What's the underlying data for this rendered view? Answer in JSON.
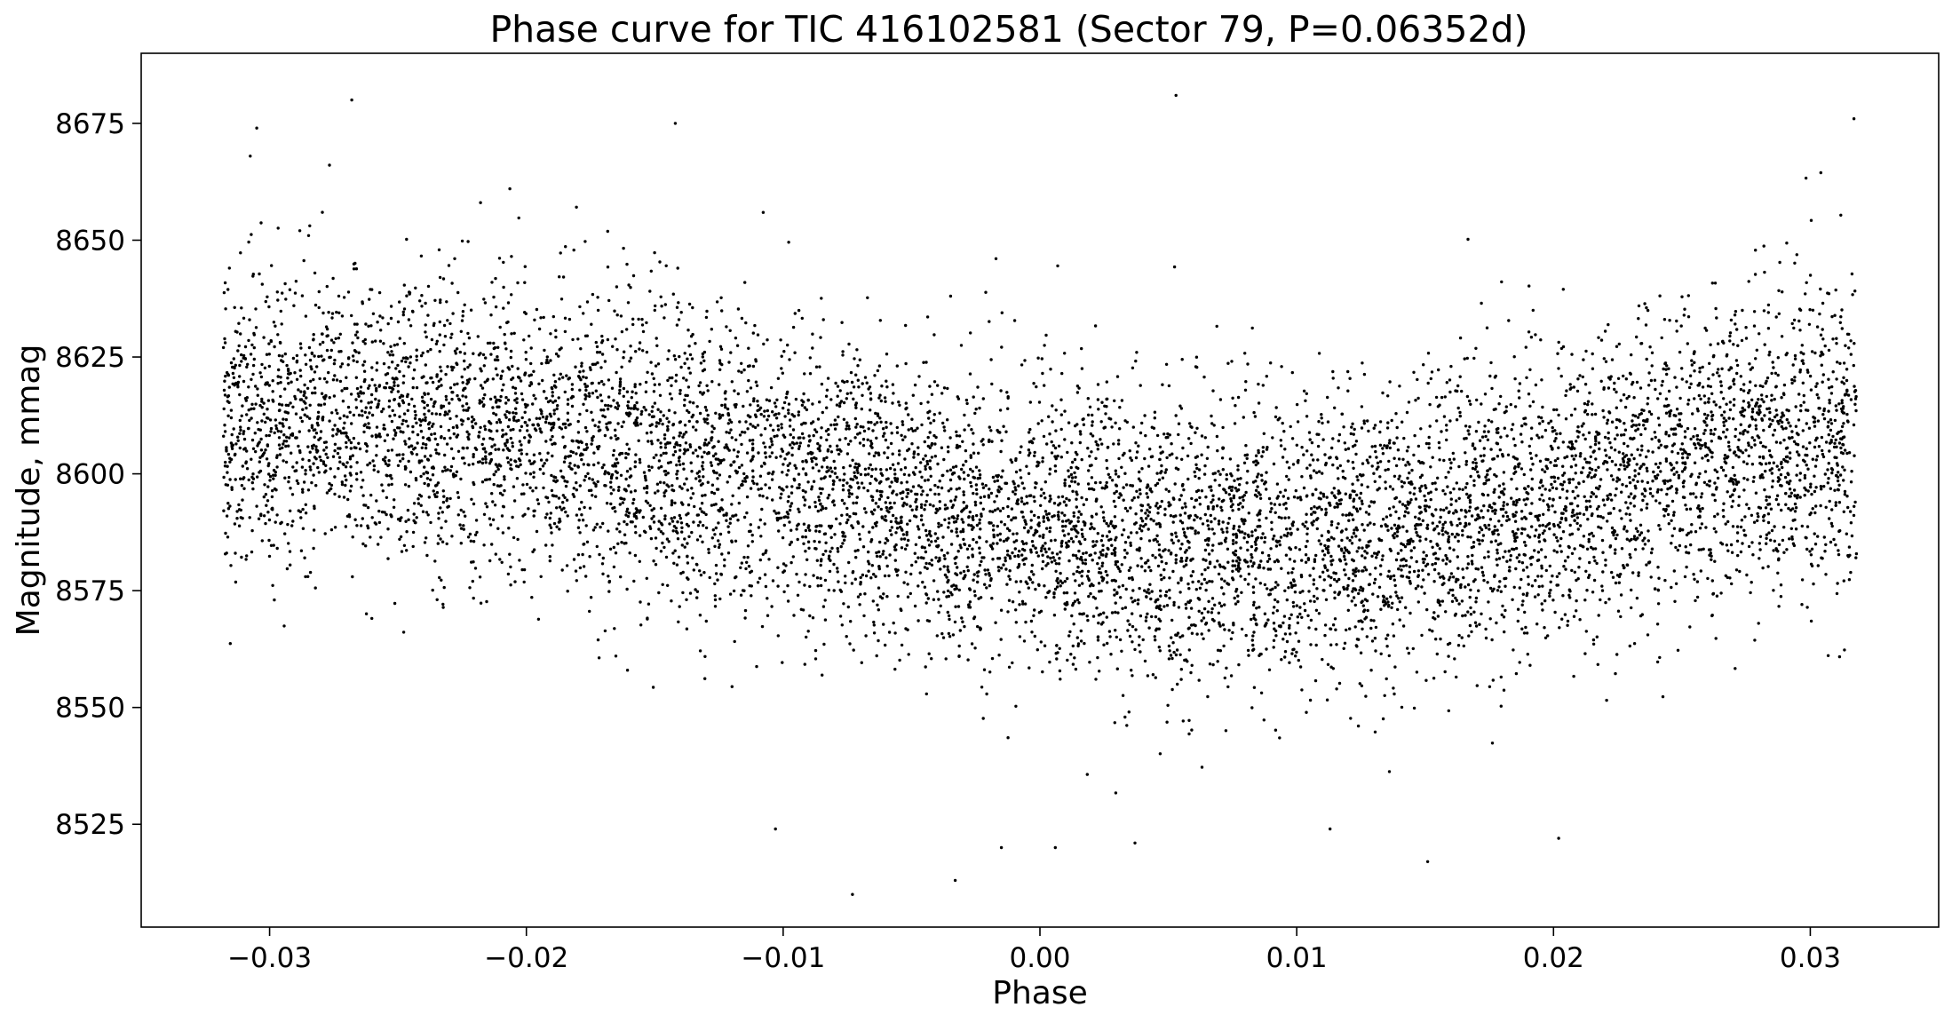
{
  "chart_data": {
    "type": "scatter",
    "title": "Phase curve for TIC 416102581 (Sector 79, P=0.06352d)",
    "xlabel": "Phase",
    "ylabel": "Magnitude, mmag",
    "xlim": [
      -0.035,
      0.035
    ],
    "ylim": [
      8503,
      8690
    ],
    "x_ticks": [
      -0.03,
      -0.02,
      -0.01,
      0.0,
      0.01,
      0.02,
      0.03
    ],
    "x_tick_labels": [
      "−0.03",
      "−0.02",
      "−0.01",
      "0.00",
      "0.01",
      "0.02",
      "0.03"
    ],
    "y_ticks": [
      8525,
      8550,
      8575,
      8600,
      8625,
      8650,
      8675
    ],
    "y_tick_labels": [
      "8525",
      "8550",
      "8575",
      "8600",
      "8625",
      "8650",
      "8675"
    ],
    "grid": false,
    "legend": "none",
    "marker_color": "#000000",
    "series": [
      {
        "phase_range": [
          -0.0318,
          0.0318
        ],
        "mean_curve": {
          "x": [
            -0.0318,
            -0.03,
            -0.025,
            -0.02,
            -0.015,
            -0.01,
            -0.005,
            0.0,
            0.005,
            0.01,
            0.015,
            0.02,
            0.025,
            0.03,
            0.0318
          ],
          "y": [
            8609,
            8610,
            8611,
            8609,
            8605,
            8600,
            8594,
            8589,
            8586,
            8586,
            8590,
            8596,
            8603,
            8608,
            8609
          ]
        },
        "scatter_sigma_mmag": 16,
        "outliers": [
          {
            "x": -0.0268,
            "y": 8680
          },
          {
            "x": 0.0053,
            "y": 8681
          },
          {
            "x": -0.0073,
            "y": 8510
          },
          {
            "x": -0.0033,
            "y": 8513
          },
          {
            "x": 0.0317,
            "y": 8676
          },
          {
            "x": -0.0305,
            "y": 8674
          },
          {
            "x": -0.0142,
            "y": 8675
          },
          {
            "x": 0.0202,
            "y": 8522
          },
          {
            "x": 0.0037,
            "y": 8521
          },
          {
            "x": 0.0006,
            "y": 8520
          },
          {
            "x": -0.0015,
            "y": 8520
          },
          {
            "x": -0.0103,
            "y": 8524
          },
          {
            "x": 0.0113,
            "y": 8524
          },
          {
            "x": 0.0151,
            "y": 8517
          }
        ]
      }
    ]
  }
}
